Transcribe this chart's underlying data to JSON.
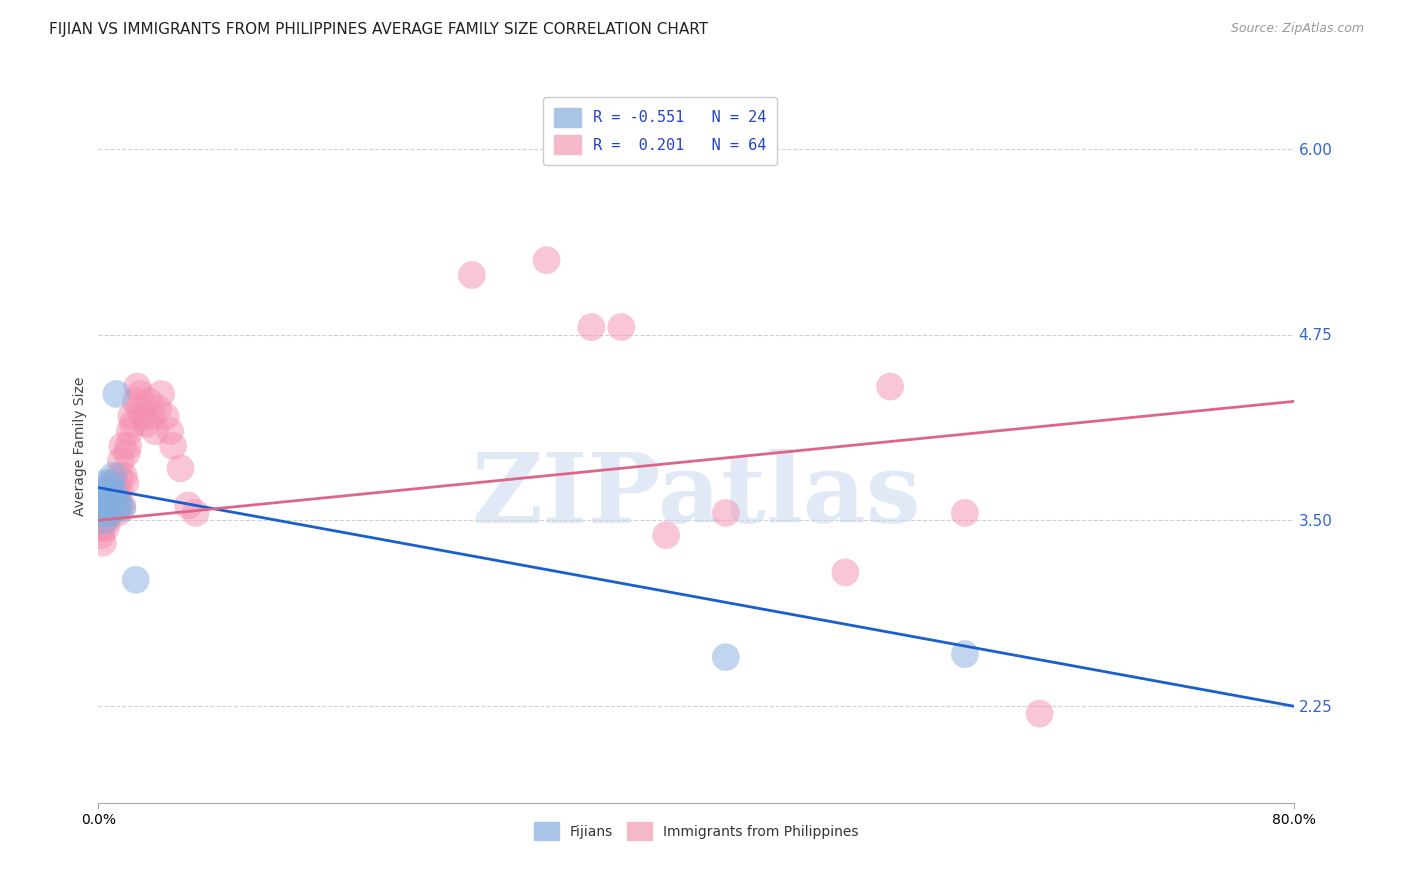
{
  "title": "FIJIAN VS IMMIGRANTS FROM PHILIPPINES AVERAGE FAMILY SIZE CORRELATION CHART",
  "source": "Source: ZipAtlas.com",
  "ylabel": "Average Family Size",
  "yticks": [
    2.25,
    3.5,
    4.75,
    6.0
  ],
  "xlim": [
    0.0,
    0.8
  ],
  "ylim": [
    1.6,
    6.4
  ],
  "watermark": "ZIPatlas",
  "legend_entries": [
    {
      "label": "R = -0.551   N = 24",
      "color": "#aac4e8"
    },
    {
      "label": "R =  0.201   N = 64",
      "color": "#f4b8c8"
    }
  ],
  "fijian_color": "#85aede",
  "philippines_color": "#f48fb1",
  "fijian_line_color": "#1a5fcc",
  "philippines_line_color": "#dd6688",
  "fijian_line": {
    "x0": 0.0,
    "y0": 3.72,
    "x1": 0.8,
    "y1": 2.25
  },
  "philippines_line": {
    "x0": 0.0,
    "y0": 3.5,
    "x1": 0.8,
    "y1": 4.3
  },
  "fijian_scatter": {
    "x": [
      0.001,
      0.002,
      0.003,
      0.004,
      0.004,
      0.005,
      0.005,
      0.006,
      0.006,
      0.007,
      0.007,
      0.008,
      0.008,
      0.009,
      0.01,
      0.01,
      0.011,
      0.012,
      0.013,
      0.014,
      0.016,
      0.025,
      0.42,
      0.58
    ],
    "y": [
      3.55,
      3.65,
      3.6,
      3.75,
      3.5,
      3.6,
      3.7,
      3.55,
      3.65,
      3.7,
      3.6,
      3.75,
      3.55,
      3.6,
      3.7,
      3.8,
      3.65,
      4.35,
      3.6,
      3.6,
      3.58,
      3.1,
      2.58,
      2.6
    ]
  },
  "philippines_scatter": {
    "x": [
      0.001,
      0.002,
      0.002,
      0.003,
      0.003,
      0.004,
      0.004,
      0.005,
      0.005,
      0.006,
      0.006,
      0.007,
      0.007,
      0.008,
      0.008,
      0.009,
      0.009,
      0.01,
      0.01,
      0.011,
      0.011,
      0.012,
      0.012,
      0.013,
      0.013,
      0.014,
      0.014,
      0.015,
      0.016,
      0.016,
      0.017,
      0.018,
      0.019,
      0.02,
      0.021,
      0.022,
      0.023,
      0.025,
      0.026,
      0.027,
      0.028,
      0.03,
      0.032,
      0.034,
      0.036,
      0.038,
      0.04,
      0.042,
      0.045,
      0.048,
      0.05,
      0.055,
      0.06,
      0.065,
      0.25,
      0.3,
      0.33,
      0.35,
      0.38,
      0.42,
      0.5,
      0.53,
      0.58,
      0.63
    ],
    "y": [
      3.5,
      3.45,
      3.4,
      3.55,
      3.35,
      3.5,
      3.6,
      3.45,
      3.55,
      3.5,
      3.65,
      3.55,
      3.7,
      3.6,
      3.55,
      3.65,
      3.6,
      3.7,
      3.6,
      3.75,
      3.65,
      3.6,
      3.7,
      3.65,
      3.55,
      3.7,
      3.8,
      3.9,
      3.6,
      4.0,
      3.8,
      3.75,
      3.95,
      4.0,
      4.1,
      4.2,
      4.15,
      4.3,
      4.4,
      4.25,
      4.35,
      4.2,
      4.15,
      4.3,
      4.2,
      4.1,
      4.25,
      4.35,
      4.2,
      4.1,
      4.0,
      3.85,
      3.6,
      3.55,
      5.15,
      5.25,
      4.8,
      4.8,
      3.4,
      3.55,
      3.15,
      4.4,
      3.55,
      2.2
    ]
  },
  "background_color": "#ffffff",
  "grid_color": "#cccccc",
  "title_fontsize": 11,
  "axis_label_fontsize": 10,
  "tick_fontsize": 10,
  "legend_fontsize": 11
}
